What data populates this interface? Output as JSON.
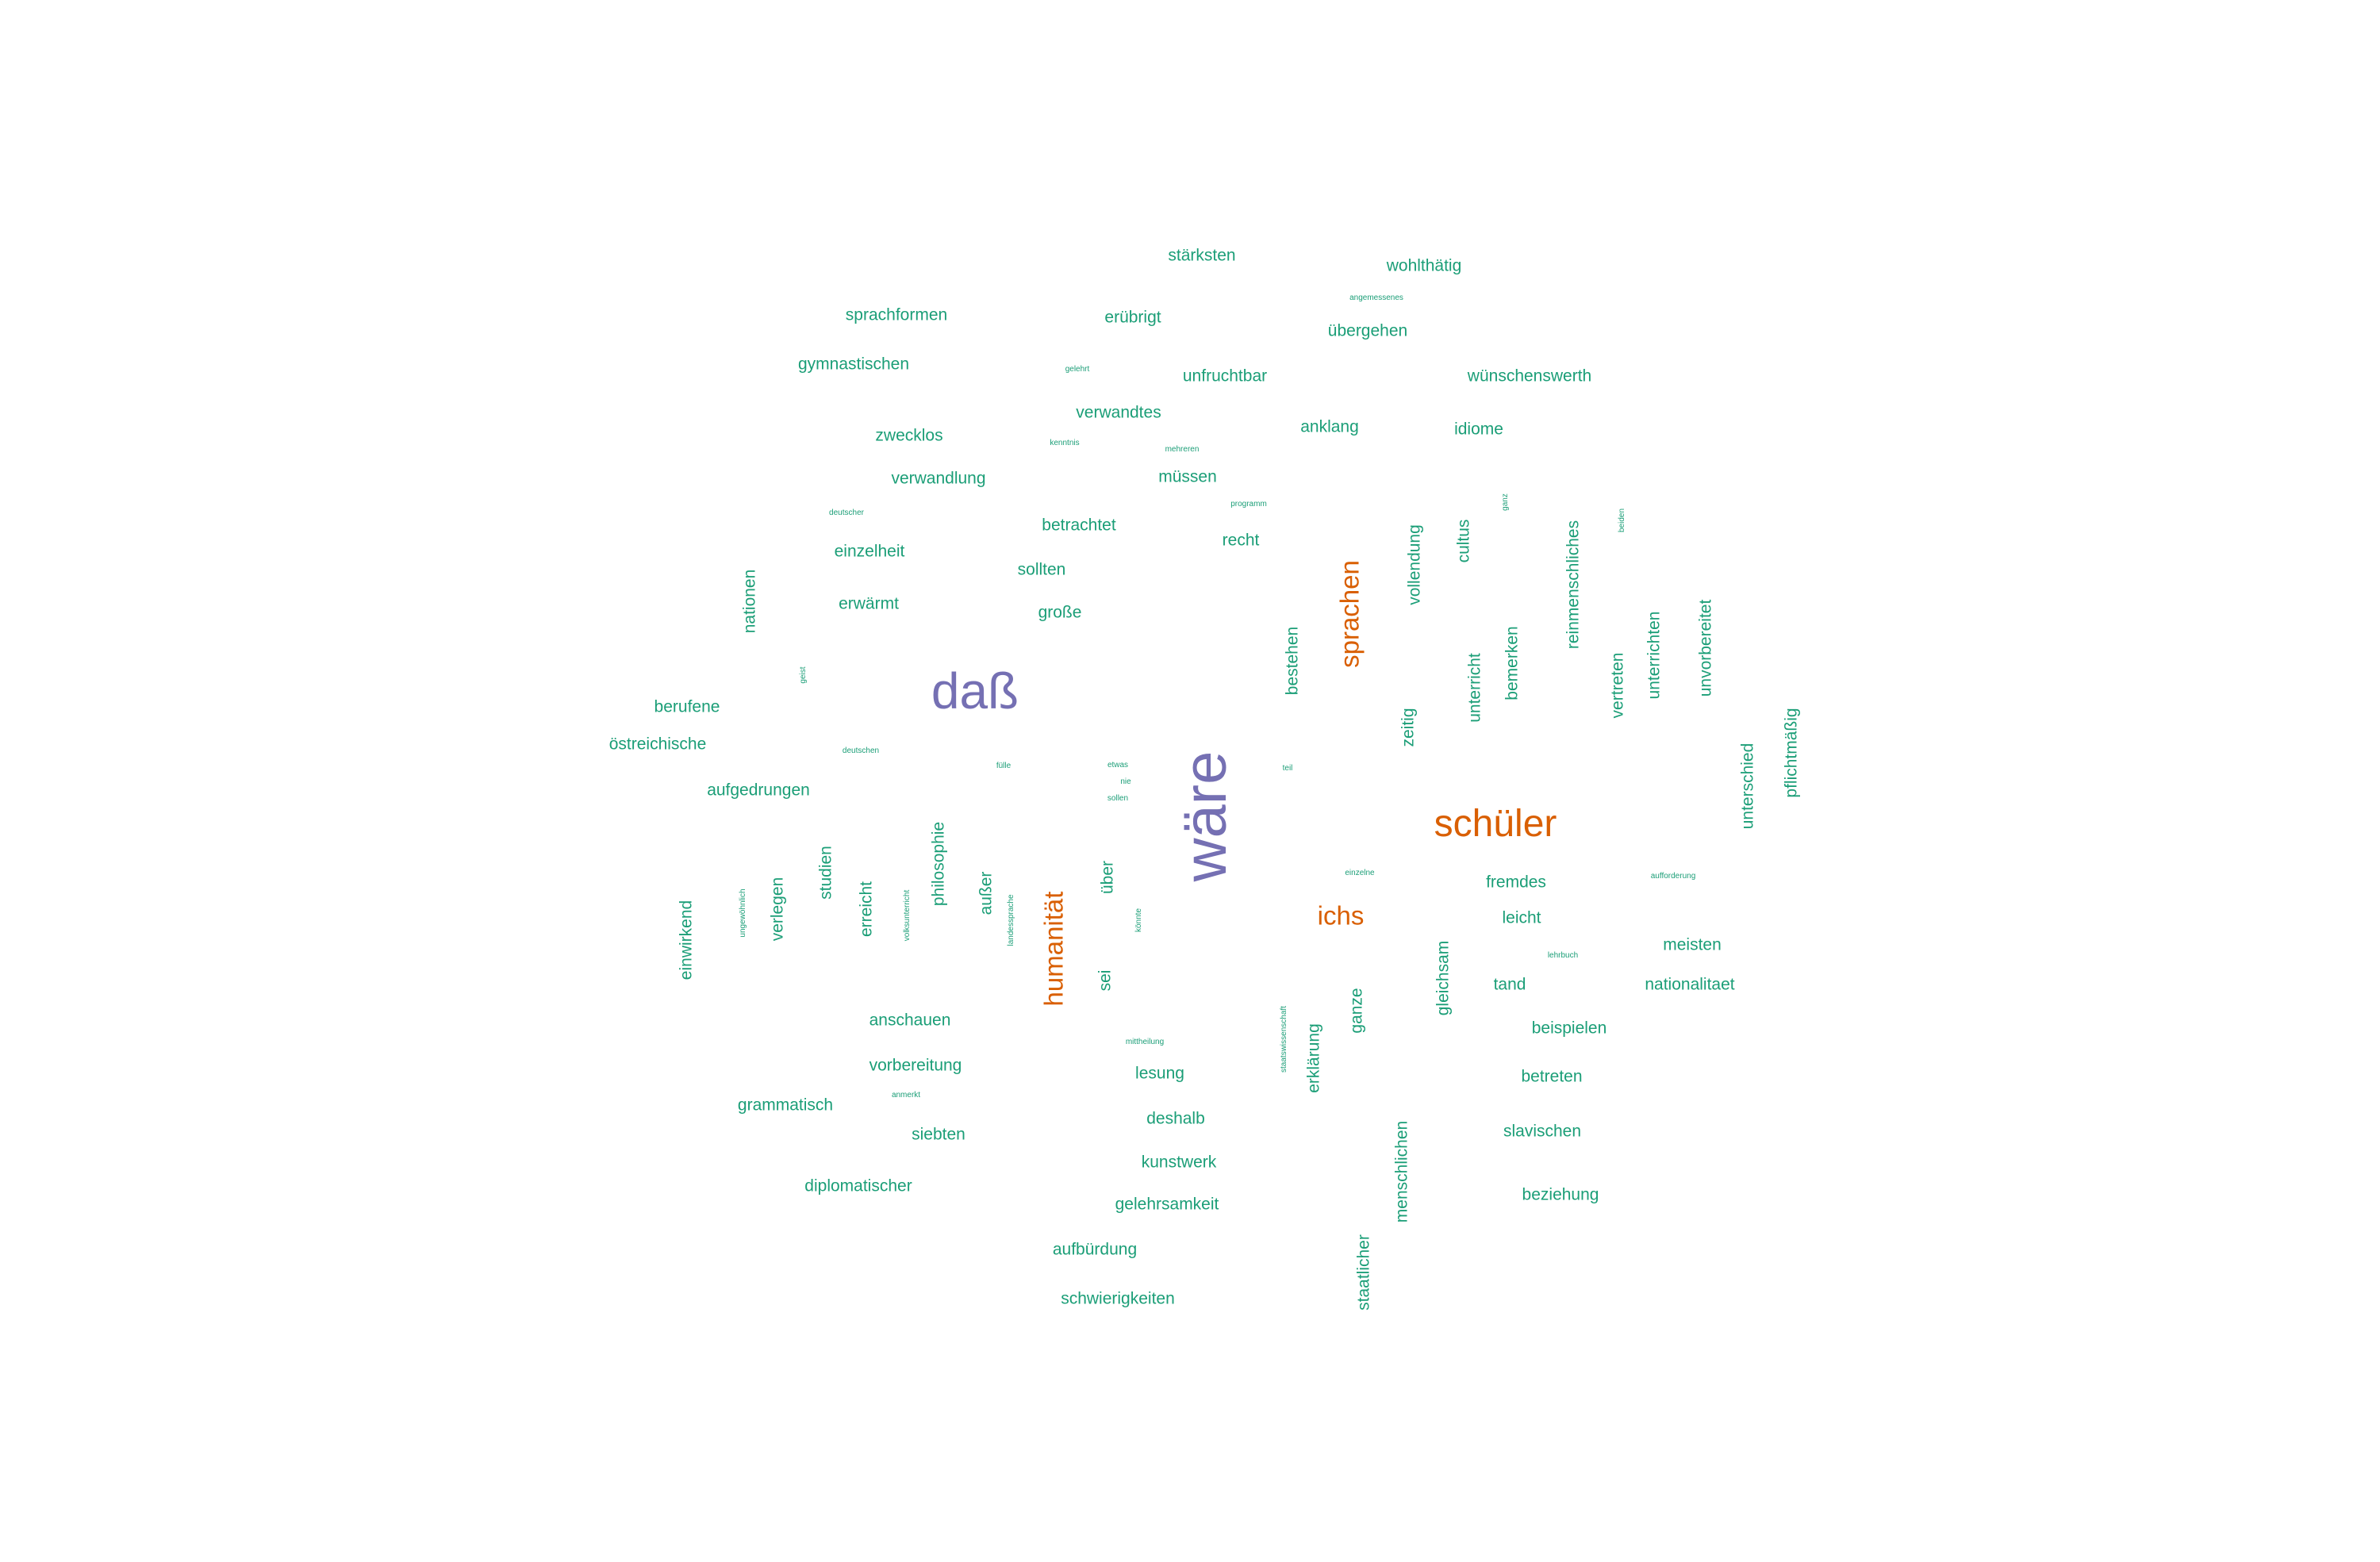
{
  "colors": {
    "green": "#1b9e77",
    "orange": "#d95f02",
    "purple": "#7570b3"
  },
  "words": [
    {
      "text": "wäre",
      "c": "purple",
      "s": 5
    },
    {
      "text": "daß",
      "c": "purple",
      "s": 4
    },
    {
      "text": "schüler",
      "c": "orange",
      "s": 3
    },
    {
      "text": "sprachen",
      "c": "orange",
      "s": 2
    },
    {
      "text": "humanität",
      "c": "orange",
      "s": 2
    },
    {
      "text": "ichs",
      "c": "orange",
      "s": 2
    },
    {
      "text": "stärksten",
      "c": "green",
      "s": 1
    },
    {
      "text": "wohlthätig",
      "c": "green",
      "s": 1
    },
    {
      "text": "angemessenes",
      "c": "green",
      "s": 0
    },
    {
      "text": "sprachformen",
      "c": "green",
      "s": 1
    },
    {
      "text": "erübrigt",
      "c": "green",
      "s": 1
    },
    {
      "text": "übergehen",
      "c": "green",
      "s": 1
    },
    {
      "text": "gymnastischen",
      "c": "green",
      "s": 1
    },
    {
      "text": "gelehrt",
      "c": "green",
      "s": 0
    },
    {
      "text": "unfruchtbar",
      "c": "green",
      "s": 1
    },
    {
      "text": "wünschenswerth",
      "c": "green",
      "s": 1
    },
    {
      "text": "verwandtes",
      "c": "green",
      "s": 1
    },
    {
      "text": "anklang",
      "c": "green",
      "s": 1
    },
    {
      "text": "idiome",
      "c": "green",
      "s": 1
    },
    {
      "text": "zwecklos",
      "c": "green",
      "s": 1
    },
    {
      "text": "kenntnis",
      "c": "green",
      "s": 0
    },
    {
      "text": "mehreren",
      "c": "green",
      "s": 0
    },
    {
      "text": "verwandlung",
      "c": "green",
      "s": 1
    },
    {
      "text": "müssen",
      "c": "green",
      "s": 1
    },
    {
      "text": "programm",
      "c": "green",
      "s": 0
    },
    {
      "text": "ganz",
      "c": "green",
      "s": 0
    },
    {
      "text": "deutscher",
      "c": "green",
      "s": 0
    },
    {
      "text": "beiden",
      "c": "green",
      "s": 0
    },
    {
      "text": "betrachtet",
      "c": "green",
      "s": 1
    },
    {
      "text": "cultus",
      "c": "green",
      "s": 1
    },
    {
      "text": "recht",
      "c": "green",
      "s": 1
    },
    {
      "text": "vollendung",
      "c": "green",
      "s": 1
    },
    {
      "text": "reinmenschliches",
      "c": "green",
      "s": 1
    },
    {
      "text": "einzelheit",
      "c": "green",
      "s": 1
    },
    {
      "text": "sollten",
      "c": "green",
      "s": 1
    },
    {
      "text": "nationen",
      "c": "green",
      "s": 1
    },
    {
      "text": "unvorbereitet",
      "c": "green",
      "s": 1
    },
    {
      "text": "erwärmt",
      "c": "green",
      "s": 1
    },
    {
      "text": "große",
      "c": "green",
      "s": 1
    },
    {
      "text": "bestehen",
      "c": "green",
      "s": 1
    },
    {
      "text": "unterricht",
      "c": "green",
      "s": 1
    },
    {
      "text": "bemerken",
      "c": "green",
      "s": 1
    },
    {
      "text": "vertreten",
      "c": "green",
      "s": 1
    },
    {
      "text": "unterrichten",
      "c": "green",
      "s": 1
    },
    {
      "text": "geist",
      "c": "green",
      "s": 0
    },
    {
      "text": "berufene",
      "c": "green",
      "s": 1
    },
    {
      "text": "zeitig",
      "c": "green",
      "s": 1
    },
    {
      "text": "pflichtmäßig",
      "c": "green",
      "s": 1
    },
    {
      "text": "östreichische",
      "c": "green",
      "s": 1
    },
    {
      "text": "deutschen",
      "c": "green",
      "s": 0
    },
    {
      "text": "fülle",
      "c": "green",
      "s": 0
    },
    {
      "text": "etwas",
      "c": "green",
      "s": 0
    },
    {
      "text": "teil",
      "c": "green",
      "s": 0
    },
    {
      "text": "nie",
      "c": "green",
      "s": 0
    },
    {
      "text": "aufgedrungen",
      "c": "green",
      "s": 1
    },
    {
      "text": "sollen",
      "c": "green",
      "s": 0
    },
    {
      "text": "unterschied",
      "c": "green",
      "s": 1
    },
    {
      "text": "philosophie",
      "c": "green",
      "s": 1
    },
    {
      "text": "einzelne",
      "c": "green",
      "s": 0
    },
    {
      "text": "fremdes",
      "c": "green",
      "s": 1
    },
    {
      "text": "aufforderung",
      "c": "green",
      "s": 0
    },
    {
      "text": "studien",
      "c": "green",
      "s": 1
    },
    {
      "text": "außer",
      "c": "green",
      "s": 1
    },
    {
      "text": "über",
      "c": "green",
      "s": 1
    },
    {
      "text": "verlegen",
      "c": "green",
      "s": 1
    },
    {
      "text": "erreicht",
      "c": "green",
      "s": 1
    },
    {
      "text": "volksunterricht",
      "c": "green",
      "s": 0
    },
    {
      "text": "ungewöhnlich",
      "c": "green",
      "s": 0
    },
    {
      "text": "leicht",
      "c": "green",
      "s": 1
    },
    {
      "text": "einwirkend",
      "c": "green",
      "s": 1
    },
    {
      "text": "landessprache",
      "c": "green",
      "s": 0
    },
    {
      "text": "könnte",
      "c": "green",
      "s": 0
    },
    {
      "text": "meisten",
      "c": "green",
      "s": 1
    },
    {
      "text": "lehrbuch",
      "c": "green",
      "s": 0
    },
    {
      "text": "sei",
      "c": "green",
      "s": 1
    },
    {
      "text": "tand",
      "c": "green",
      "s": 1
    },
    {
      "text": "gleichsam",
      "c": "green",
      "s": 1
    },
    {
      "text": "nationalitaet",
      "c": "green",
      "s": 1
    },
    {
      "text": "ganze",
      "c": "green",
      "s": 1
    },
    {
      "text": "anschauen",
      "c": "green",
      "s": 1
    },
    {
      "text": "beispielen",
      "c": "green",
      "s": 1
    },
    {
      "text": "mittheilung",
      "c": "green",
      "s": 0
    },
    {
      "text": "staatswissenschaft",
      "c": "green",
      "s": 0
    },
    {
      "text": "vorbereitung",
      "c": "green",
      "s": 1
    },
    {
      "text": "lesung",
      "c": "green",
      "s": 1
    },
    {
      "text": "erklärung",
      "c": "green",
      "s": 1
    },
    {
      "text": "betreten",
      "c": "green",
      "s": 1
    },
    {
      "text": "anmerkt",
      "c": "green",
      "s": 0
    },
    {
      "text": "grammatisch",
      "c": "green",
      "s": 1
    },
    {
      "text": "deshalb",
      "c": "green",
      "s": 1
    },
    {
      "text": "siebten",
      "c": "green",
      "s": 1
    },
    {
      "text": "slavischen",
      "c": "green",
      "s": 1
    },
    {
      "text": "menschlichen",
      "c": "green",
      "s": 1
    },
    {
      "text": "kunstwerk",
      "c": "green",
      "s": 1
    },
    {
      "text": "diplomatischer",
      "c": "green",
      "s": 1
    },
    {
      "text": "beziehung",
      "c": "green",
      "s": 1
    },
    {
      "text": "gelehrsamkeit",
      "c": "green",
      "s": 1
    },
    {
      "text": "aufbürdung",
      "c": "green",
      "s": 1
    },
    {
      "text": "staatlicher",
      "c": "green",
      "s": 1
    },
    {
      "text": "schwierigkeiten",
      "c": "green",
      "s": 1
    }
  ]
}
